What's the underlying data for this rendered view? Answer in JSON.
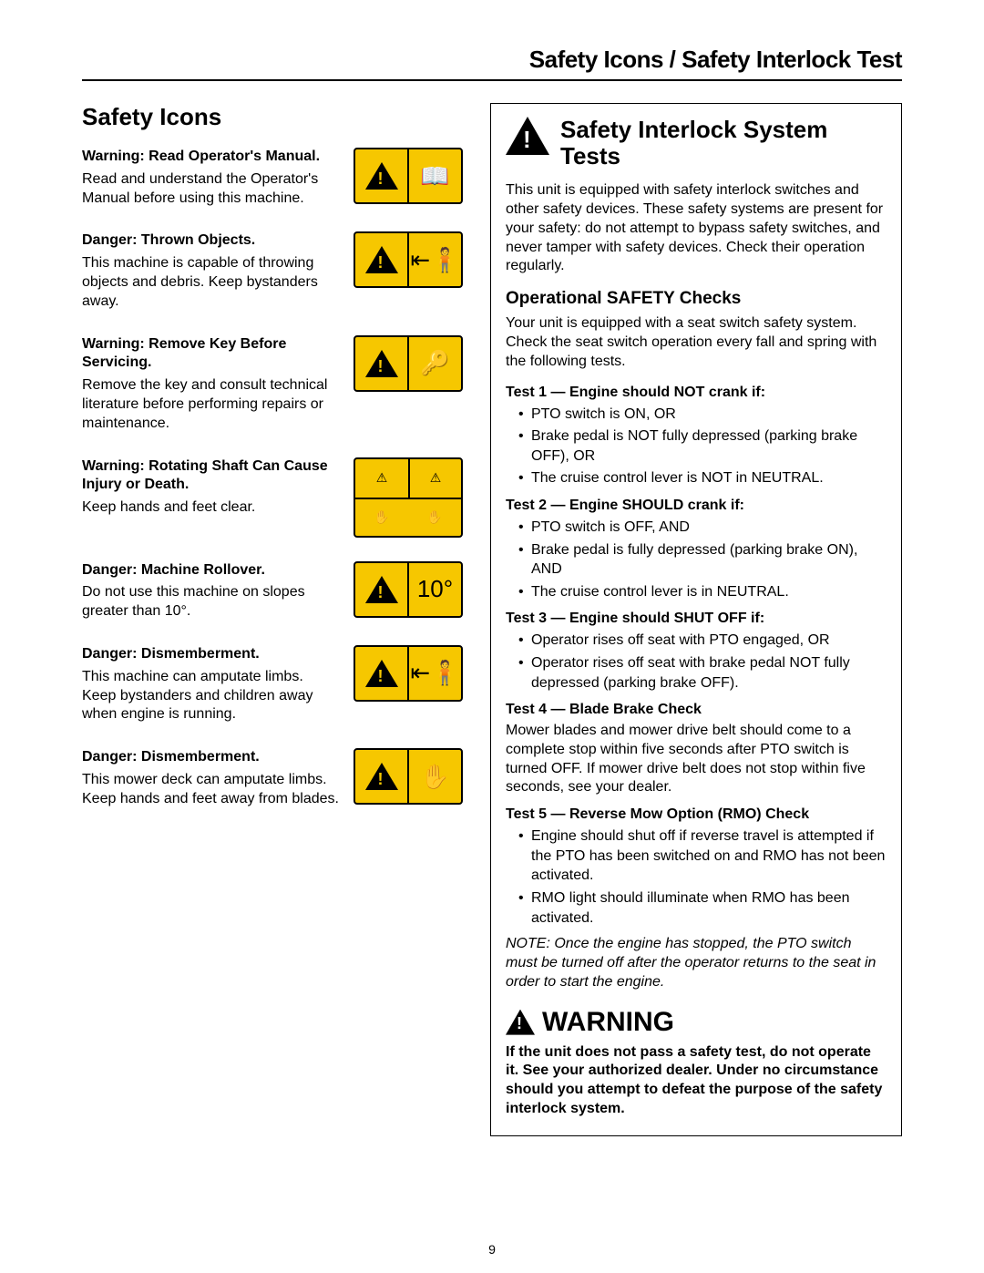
{
  "header": "Safety Icons / Safety Interlock Test",
  "left": {
    "title": "Safety Icons",
    "items": [
      {
        "label": "Warning: Read Operator's Manual.",
        "text": "Read and understand the Operator's Manual before using this machine.",
        "glyph": "📖"
      },
      {
        "label": "Danger: Thrown Objects.",
        "text": "This machine is capable of throwing objects and debris.  Keep bystanders away.",
        "glyph": "⇤🧍"
      },
      {
        "label": "Warning: Remove Key Before Servicing.",
        "text": "Remove the key and consult technical literature before performing repairs or maintenance.",
        "glyph": "🔑"
      },
      {
        "label": "Warning: Rotating Shaft Can Cause Injury or Death.",
        "text": "Keep hands and feet clear.",
        "glyph": "✋",
        "quad": true
      },
      {
        "label": "Danger: Machine Rollover.",
        "text": "Do not use this machine on slopes greater than 10°.",
        "glyph": "10°"
      },
      {
        "label": "Danger: Dismemberment.",
        "text": "This machine can amputate limbs.  Keep bystanders and children away when engine is running.",
        "glyph": "⇤🧍"
      },
      {
        "label": "Danger: Dismemberment.",
        "text": "This mower deck can amputate limbs.  Keep hands and feet away from blades.",
        "glyph": "✋"
      }
    ]
  },
  "right": {
    "title": "Safety Interlock System Tests",
    "intro": "This unit is equipped with safety interlock switches and other safety devices. These safety systems are present for your safety: do not attempt to bypass safety switches, and never tamper with safety devices. Check their operation regularly.",
    "sub": "Operational SAFETY Checks",
    "subintro": "Your unit is equipped with a seat switch safety system. Check the seat switch operation every fall and spring with the following tests.",
    "tests": [
      {
        "label": "Test 1 — Engine should NOT crank if:",
        "items": [
          "PTO switch is ON, OR",
          "Brake pedal is NOT fully depressed (parking brake OFF), OR",
          "The cruise control lever is NOT in NEUTRAL."
        ]
      },
      {
        "label": "Test 2 — Engine SHOULD crank if:",
        "items": [
          "PTO switch is OFF, AND",
          "Brake pedal is fully depressed (parking brake ON), AND",
          "The cruise control lever is in NEUTRAL."
        ]
      },
      {
        "label": "Test 3 — Engine should SHUT OFF if:",
        "items": [
          "Operator rises off seat with PTO engaged, OR",
          "Operator rises off seat with brake pedal NOT fully depressed (parking brake OFF)."
        ]
      },
      {
        "label": "Test 4 — Blade Brake Check",
        "body": "Mower blades and mower drive belt should come to a complete stop within five seconds after PTO switch is turned OFF. If mower drive belt does not stop within five seconds, see your dealer."
      },
      {
        "label": "Test 5 — Reverse Mow Option (RMO) Check",
        "items": [
          "Engine should shut off if reverse travel is attempted if the PTO has been switched on and RMO has not been activated.",
          "RMO light should illuminate when RMO has been activated."
        ]
      }
    ],
    "note": "NOTE: Once the engine has stopped, the PTO switch must be turned off after the operator returns to the seat in order to start the engine.",
    "warning_title": "WARNING",
    "warning_body": "If the unit does not pass a safety test, do not operate it. See your authorized dealer. Under no circumstance should you attempt to defeat the purpose of the safety interlock system."
  },
  "pagenum": "9",
  "colors": {
    "icon_bg": "#f6c700",
    "border": "#000000",
    "text": "#000000",
    "page_bg": "#ffffff"
  }
}
